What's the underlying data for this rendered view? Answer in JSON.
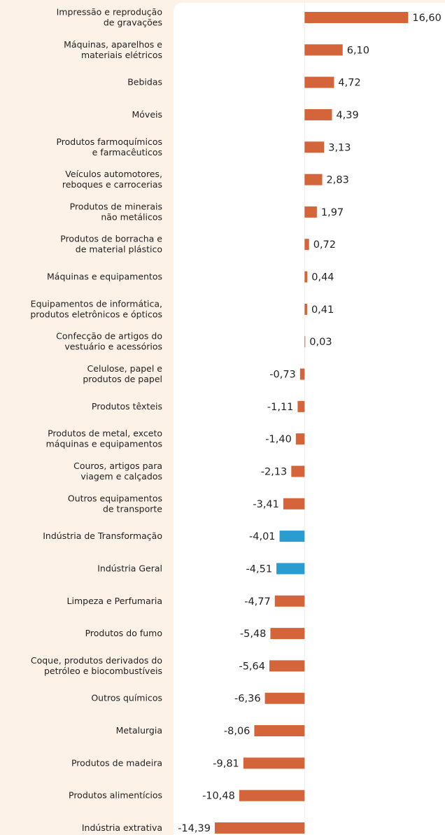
{
  "chart_data": {
    "type": "bar",
    "orientation": "horizontal",
    "categories": [
      "Impressão e reprodução\nde gravações",
      "Máquinas, aparelhos e\nmateriais elétricos",
      "Bebidas",
      "Móveis",
      "Produtos farmoquímicos\ne farmacêuticos",
      "Veículos automotores,\nreboques e carrocerias",
      "Produtos de minerais\nnão metálicos",
      "Produtos de borracha e\nde material plástico",
      "Máquinas e equipamentos",
      "Equipamentos de informática,\nprodutos eletrônicos e ópticos",
      "Confecção de artigos do\nvestuário e acessórios",
      "Celulose, papel e\nprodutos de papel",
      "Produtos têxteis",
      "Produtos de metal, exceto\nmáquinas e equipamentos",
      "Couros, artigos para\nviagem e calçados",
      "Outros equipamentos\nde transporte",
      "Indústria de Transformação",
      "Indústria Geral",
      "Limpeza e Perfumaria",
      "Produtos do fumo",
      "Coque, produtos derivados do\npetróleo e biocombustíveis",
      "Outros químicos",
      "Metalurgia",
      "Produtos de madeira",
      "Produtos alimentícios",
      "Indústria extrativa"
    ],
    "values": [
      16.6,
      6.1,
      4.72,
      4.39,
      3.13,
      2.83,
      1.97,
      0.72,
      0.44,
      0.41,
      0.03,
      -0.73,
      -1.11,
      -1.4,
      -2.13,
      -3.41,
      -4.01,
      -4.51,
      -4.77,
      -5.48,
      -5.64,
      -6.36,
      -8.06,
      -9.81,
      -10.48,
      -14.39
    ],
    "value_labels": [
      "16,60",
      "6,10",
      "4,72",
      "4,39",
      "3,13",
      "2,83",
      "1,97",
      "0,72",
      "0,44",
      "0,41",
      "0,03",
      "-0,73",
      "-1,11",
      "-1,40",
      "-2,13",
      "-3,41",
      "-4,01",
      "-4,51",
      "-4,77",
      "-5,48",
      "-5,64",
      "-6,36",
      "-8,06",
      "-9,81",
      "-10,48",
      "-14,39"
    ],
    "colors": [
      "#d4653a",
      "#d4653a",
      "#d4653a",
      "#d4653a",
      "#d4653a",
      "#d4653a",
      "#d4653a",
      "#d4653a",
      "#d4653a",
      "#d4653a",
      "#d4653a",
      "#d4653a",
      "#d4653a",
      "#d4653a",
      "#d4653a",
      "#d4653a",
      "#2b9ccf",
      "#2b9ccf",
      "#d4653a",
      "#d4653a",
      "#d4653a",
      "#d4653a",
      "#d4653a",
      "#d4653a",
      "#d4653a",
      "#d4653a"
    ],
    "xlim": [
      -21,
      22.5
    ]
  }
}
